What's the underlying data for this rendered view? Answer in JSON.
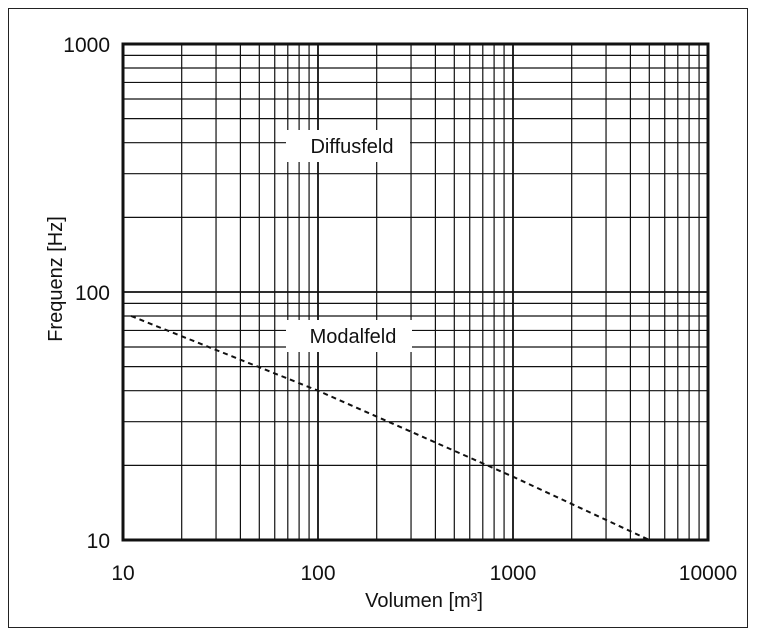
{
  "chart_data": {
    "type": "line",
    "title": "",
    "xlabel": "Volumen [m³]",
    "ylabel": "Frequenz [Hz]",
    "x_scale": "log",
    "y_scale": "log",
    "xlim": [
      10,
      10000
    ],
    "ylim": [
      10,
      1000
    ],
    "x_ticks": [
      "10",
      "100",
      "1000",
      "10000"
    ],
    "y_ticks": [
      "10",
      "100",
      "1000"
    ],
    "grid": true,
    "annotations": [
      "Diffusfeld",
      "Modalfeld"
    ],
    "series": [
      {
        "style": "dashed",
        "x": [
          11,
          100,
          1000,
          5000
        ],
        "y": [
          80,
          40,
          18,
          10
        ]
      }
    ]
  }
}
